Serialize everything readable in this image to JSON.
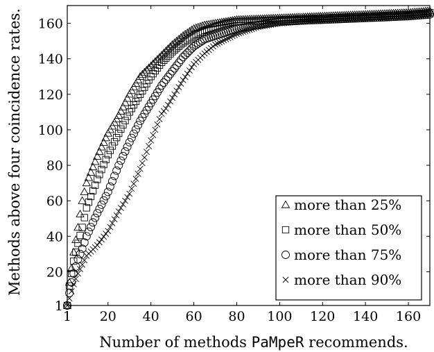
{
  "chart_data": {
    "type": "scatter",
    "xlabel": "Number of methods",
    "xlabel_mono": "PaMpeR",
    "xlabel_suffix": "recommends.",
    "ylabel": "Methods above four coincidence rates.",
    "xlim": [
      1,
      170
    ],
    "ylim": [
      1,
      170
    ],
    "x_ticks": [
      1,
      20,
      40,
      60,
      80,
      100,
      120,
      140,
      160
    ],
    "y_ticks": [
      1,
      20,
      40,
      60,
      80,
      100,
      120,
      140,
      160
    ],
    "grid": false,
    "legend_position": "bottom-right",
    "series": [
      {
        "name": "more than 25%",
        "marker": "triangle",
        "anchors": [
          [
            1,
            1
          ],
          [
            2,
            14
          ],
          [
            3,
            22
          ],
          [
            4,
            31
          ],
          [
            6,
            45
          ],
          [
            8,
            60
          ],
          [
            10,
            70
          ],
          [
            15,
            85
          ],
          [
            20,
            98
          ],
          [
            25,
            108
          ],
          [
            30,
            120
          ],
          [
            35,
            130
          ],
          [
            40,
            136
          ],
          [
            45,
            142
          ],
          [
            50,
            148
          ],
          [
            55,
            153
          ],
          [
            60,
            157
          ],
          [
            65,
            159
          ],
          [
            70,
            160
          ],
          [
            75,
            161
          ],
          [
            80,
            162
          ],
          [
            100,
            163
          ],
          [
            120,
            164
          ],
          [
            140,
            165
          ],
          [
            160,
            166
          ],
          [
            170,
            167
          ]
        ]
      },
      {
        "name": "more than 50%",
        "marker": "square",
        "anchors": [
          [
            1,
            1
          ],
          [
            2,
            12
          ],
          [
            3,
            19
          ],
          [
            4,
            26
          ],
          [
            6,
            36
          ],
          [
            8,
            45
          ],
          [
            10,
            56
          ],
          [
            15,
            72
          ],
          [
            20,
            86
          ],
          [
            25,
            98
          ],
          [
            30,
            110
          ],
          [
            35,
            120
          ],
          [
            40,
            130
          ],
          [
            45,
            138
          ],
          [
            50,
            144
          ],
          [
            55,
            149
          ],
          [
            60,
            153
          ],
          [
            65,
            156
          ],
          [
            70,
            158
          ],
          [
            75,
            160
          ],
          [
            80,
            161
          ],
          [
            100,
            162
          ],
          [
            120,
            163
          ],
          [
            140,
            164
          ],
          [
            160,
            165
          ],
          [
            170,
            166
          ]
        ]
      },
      {
        "name": "more than 75%",
        "marker": "circle",
        "anchors": [
          [
            1,
            1
          ],
          [
            2,
            8
          ],
          [
            3,
            14
          ],
          [
            4,
            19
          ],
          [
            6,
            27
          ],
          [
            8,
            33
          ],
          [
            10,
            40
          ],
          [
            15,
            53
          ],
          [
            20,
            65
          ],
          [
            25,
            80
          ],
          [
            30,
            93
          ],
          [
            35,
            105
          ],
          [
            40,
            115
          ],
          [
            45,
            125
          ],
          [
            50,
            133
          ],
          [
            55,
            141
          ],
          [
            60,
            147
          ],
          [
            65,
            151
          ],
          [
            70,
            153
          ],
          [
            75,
            155
          ],
          [
            80,
            157
          ],
          [
            90,
            159
          ],
          [
            100,
            161
          ],
          [
            120,
            162
          ],
          [
            140,
            163
          ],
          [
            160,
            164
          ],
          [
            170,
            165
          ]
        ]
      },
      {
        "name": "more than 90%",
        "marker": "x",
        "anchors": [
          [
            1,
            1
          ],
          [
            2,
            5
          ],
          [
            3,
            9
          ],
          [
            4,
            13
          ],
          [
            6,
            19
          ],
          [
            8,
            24
          ],
          [
            10,
            29
          ],
          [
            15,
            35
          ],
          [
            20,
            43
          ],
          [
            25,
            54
          ],
          [
            30,
            64
          ],
          [
            35,
            78
          ],
          [
            40,
            94
          ],
          [
            45,
            109
          ],
          [
            47,
            112
          ],
          [
            50,
            118
          ],
          [
            55,
            128
          ],
          [
            60,
            137
          ],
          [
            65,
            143
          ],
          [
            70,
            148
          ],
          [
            80,
            154
          ],
          [
            90,
            158
          ],
          [
            100,
            160
          ],
          [
            120,
            162
          ],
          [
            140,
            163
          ],
          [
            160,
            164
          ],
          [
            170,
            165
          ]
        ]
      }
    ]
  }
}
